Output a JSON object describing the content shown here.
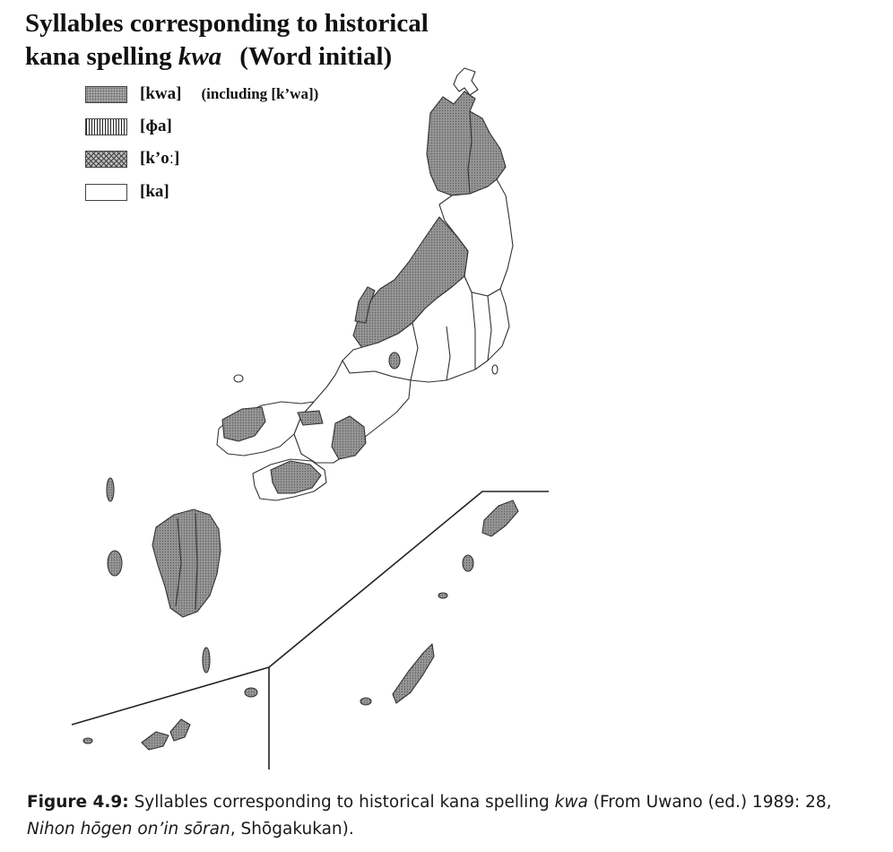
{
  "title": {
    "line1": "Syllables corresponding to historical",
    "line2_pre": "kana spelling",
    "line2_italic": "kwa",
    "line2_post": "(Word initial)"
  },
  "legend": {
    "items": [
      {
        "label": "[kwa]",
        "note": "(including [k’wa])",
        "pattern": "stippled"
      },
      {
        "label": "[ɸa]",
        "note": "",
        "pattern": "vertical-lines"
      },
      {
        "label": "[k’oː]",
        "note": "",
        "pattern": "crosshatch"
      },
      {
        "label": "[ka]",
        "note": "",
        "pattern": "blank"
      }
    ]
  },
  "map": {
    "subject": "Japan prefecture map",
    "fills": {
      "kwa": "#8f8f8f",
      "ka": "#ffffff",
      "outline": "#333333"
    }
  },
  "caption": {
    "label": "Figure 4.9:",
    "text_pre": " Syllables corresponding to historical kana spelling ",
    "text_italic": "kwa",
    "text_mid": " (From Uwano (ed.) 1989: 28, ",
    "source_italic": "Nihon hōgen on’in sōran",
    "text_post": ", Shōgakukan)."
  }
}
